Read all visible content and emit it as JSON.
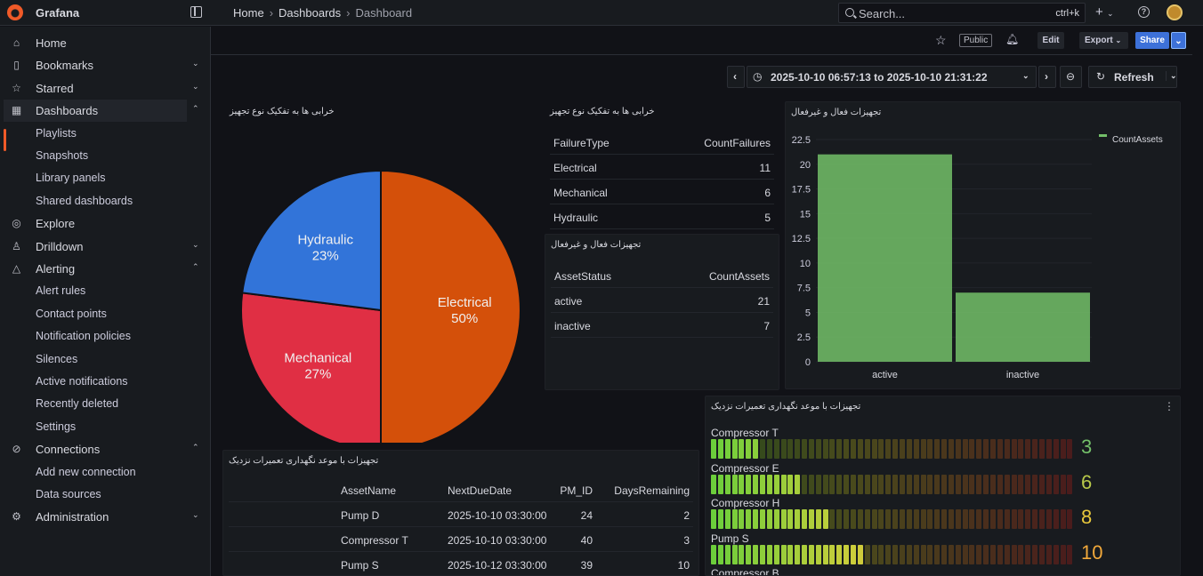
{
  "app": {
    "name": "Grafana"
  },
  "breadcrumb": [
    "Home",
    "Dashboards",
    "Dashboard"
  ],
  "search": {
    "placeholder": "Search...",
    "shortcut": "ctrl+k"
  },
  "sidebar": {
    "items": [
      {
        "label": "Home",
        "icon": "home-icon"
      },
      {
        "label": "Bookmarks",
        "icon": "bookmark-icon",
        "chevron": "down"
      },
      {
        "label": "Starred",
        "icon": "star-icon",
        "chevron": "down"
      },
      {
        "label": "Dashboards",
        "icon": "dashboards-icon",
        "chevron": "up",
        "active": true
      },
      {
        "label": "Playlists",
        "sub": true
      },
      {
        "label": "Snapshots",
        "sub": true
      },
      {
        "label": "Library panels",
        "sub": true
      },
      {
        "label": "Shared dashboards",
        "sub": true
      },
      {
        "label": "Explore",
        "icon": "compass-icon"
      },
      {
        "label": "Drilldown",
        "icon": "drilldown-icon",
        "chevron": "down"
      },
      {
        "label": "Alerting",
        "icon": "bell-icon",
        "chevron": "up"
      },
      {
        "label": "Alert rules",
        "sub": true
      },
      {
        "label": "Contact points",
        "sub": true
      },
      {
        "label": "Notification policies",
        "sub": true
      },
      {
        "label": "Silences",
        "sub": true
      },
      {
        "label": "Active notifications",
        "sub": true
      },
      {
        "label": "Recently deleted",
        "sub": true
      },
      {
        "label": "Settings",
        "sub": true
      },
      {
        "label": "Connections",
        "icon": "connections-icon",
        "chevron": "up"
      },
      {
        "label": "Add new connection",
        "sub": true
      },
      {
        "label": "Data sources",
        "sub": true
      },
      {
        "label": "Administration",
        "icon": "gear-icon",
        "chevron": "down"
      }
    ]
  },
  "toolbar": {
    "public": "Public",
    "edit": "Edit",
    "export": "Export",
    "share": "Share"
  },
  "timerange": {
    "label": "2025-10-10 06:57:13 to 2025-10-10 21:31:22",
    "refresh": "Refresh"
  },
  "panels": {
    "pie": {
      "title": "خرابی ها به تفکیک نوع تجهیز",
      "slices": [
        {
          "name": "Electrical",
          "pct": "50%",
          "value": 50,
          "color": "#d4500a"
        },
        {
          "name": "Mechanical",
          "pct": "27%",
          "value": 27,
          "color": "#e02f44"
        },
        {
          "name": "Hydraulic",
          "pct": "23%",
          "value": 23,
          "color": "#3274d9"
        }
      ]
    },
    "failures": {
      "title": "خرابی ها به تفکیک نوع تجهیز",
      "headers": [
        "FailureType",
        "CountFailures"
      ],
      "rows": [
        [
          "Electrical",
          "11"
        ],
        [
          "Mechanical",
          "6"
        ],
        [
          "Hydraulic",
          "5"
        ]
      ]
    },
    "assets": {
      "title": "تجهیزات فعال و غیرفعال",
      "headers": [
        "AssetStatus",
        "CountAssets"
      ],
      "rows": [
        [
          "active",
          "21"
        ],
        [
          "inactive",
          "7"
        ]
      ]
    },
    "barchart": {
      "title": "تجهیزات فعال و غیرفعال",
      "legend": "CountAssets",
      "yticks": [
        "22.5",
        "20",
        "17.5",
        "15",
        "12.5",
        "10",
        "7.5",
        "5",
        "2.5",
        "0"
      ]
    },
    "pm": {
      "title": "تجهیزات با موعد نگهداری تعمیرات نزدیک",
      "headers": [
        "PM_ID",
        "AssetName",
        "NextDueDate",
        "DaysRemaining"
      ],
      "rows": [
        [
          "24",
          "Pump D",
          "2025-10-10 03:30:00",
          "2"
        ],
        [
          "40",
          "Compressor T",
          "2025-10-10 03:30:00",
          "3"
        ],
        [
          "39",
          "Pump S",
          "2025-10-12 03:30:00",
          "10"
        ]
      ]
    },
    "gauge": {
      "title": "تجهیزات با موعد نگهداری تعمیرات نزدیک",
      "max": 30,
      "rows": [
        {
          "name": "Compressor T",
          "value": 3,
          "display": "3",
          "color": "#73bf69"
        },
        {
          "name": "Compressor E",
          "value": 6,
          "display": "6",
          "color": "#b8c94a"
        },
        {
          "name": "Compressor H",
          "value": 8,
          "display": "8",
          "color": "#e8c83c"
        },
        {
          "name": "Pump S",
          "value": 10,
          "display": "10",
          "color": "#f2a93b"
        },
        {
          "name": "Compressor B",
          "value": 0,
          "display": "",
          "color": "#73bf69"
        }
      ]
    }
  },
  "chart_data": {
    "type": "bar",
    "categories": [
      "active",
      "inactive"
    ],
    "series": [
      {
        "name": "CountAssets",
        "values": [
          21,
          7
        ]
      }
    ],
    "ylim": [
      0,
      22.5
    ],
    "xlabel": "",
    "ylabel": "",
    "legend": "top-right",
    "color": "#73bf69"
  }
}
